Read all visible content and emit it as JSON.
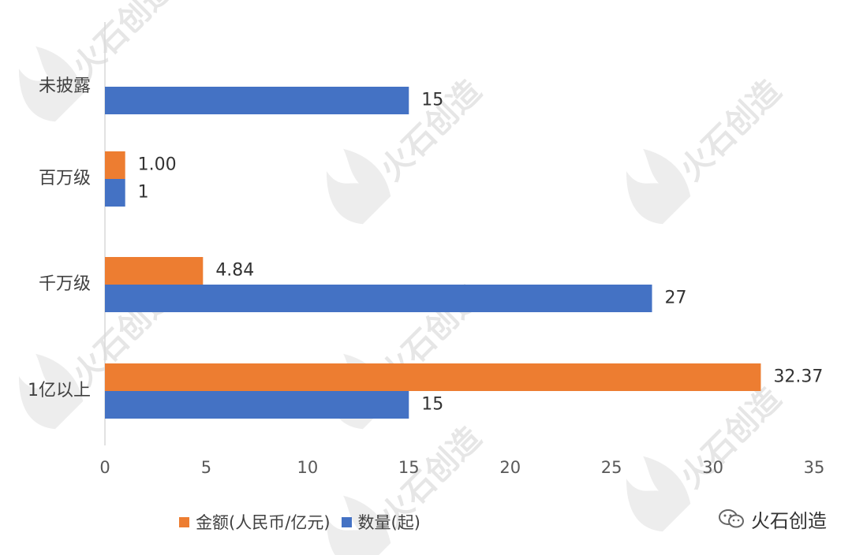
{
  "chart_data": {
    "type": "bar",
    "orientation": "horizontal",
    "categories": [
      "未披露",
      "百万级",
      "千万级",
      "1亿以上"
    ],
    "series": [
      {
        "name": "金额(人民币/亿元)",
        "color": "#ED7D31",
        "values": [
          null,
          1.0,
          4.84,
          32.37
        ],
        "labels": [
          "",
          "1.00",
          "4.84",
          "32.37"
        ]
      },
      {
        "name": "数量(起)",
        "color": "#4472C4",
        "values": [
          15,
          1,
          27,
          15
        ],
        "labels": [
          "15",
          "1",
          "27",
          "15"
        ]
      }
    ],
    "xlim": [
      0,
      35
    ],
    "xticks": [
      "0",
      "5",
      "10",
      "15",
      "20",
      "25",
      "30",
      "35"
    ],
    "grid": false,
    "legend_position": "bottom"
  },
  "watermark": {
    "text": "火石创造"
  },
  "brand": {
    "name": "火石创造",
    "icon": "wechat-icon"
  }
}
